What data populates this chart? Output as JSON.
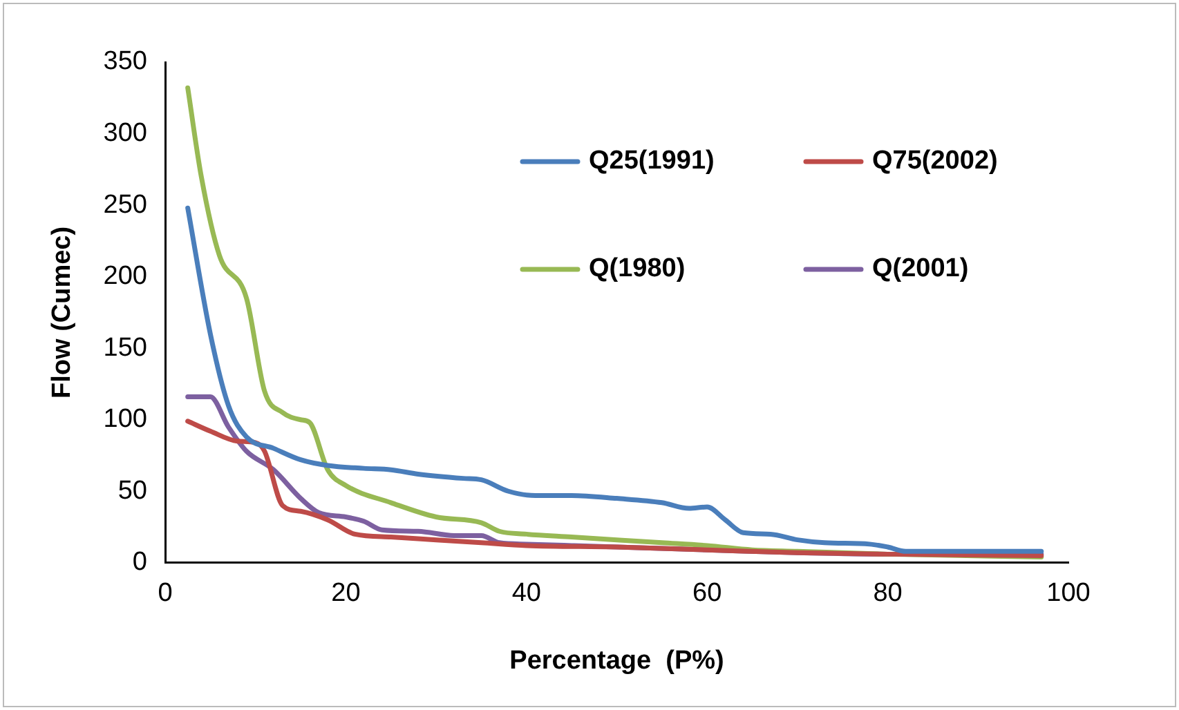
{
  "chart_data": {
    "type": "line",
    "xlabel": "Percentage  (P%)",
    "ylabel": "Flow (Cumec)",
    "xlim": [
      0,
      100
    ],
    "xticks": [
      0,
      20,
      40,
      60,
      80,
      100
    ],
    "ylim": [
      0,
      350
    ],
    "yticks": [
      0,
      50,
      100,
      150,
      200,
      250,
      300,
      350
    ],
    "grid": false,
    "legend": "top right",
    "marker": "none",
    "line_style": "solid",
    "series": [
      {
        "name": "Q25(1991)",
        "color": "#4a7ebb",
        "x": [
          2.5,
          5,
          7,
          9,
          12,
          15,
          18,
          22,
          25,
          28,
          33,
          35,
          38,
          41,
          45,
          50,
          55,
          58,
          60,
          62,
          64,
          67,
          70,
          73,
          78,
          80,
          82,
          90,
          97
        ],
        "values": [
          248,
          160,
          110,
          88,
          80,
          72,
          68,
          66,
          65,
          62,
          59,
          58,
          50,
          47,
          47,
          45,
          42,
          38,
          39,
          30,
          21,
          20,
          16,
          14,
          13,
          11,
          8,
          8,
          8
        ]
      },
      {
        "name": "Q75(2002)",
        "color": "#be4b48",
        "x": [
          2.5,
          5,
          8,
          10,
          11,
          13,
          15,
          18,
          21,
          25,
          30,
          35,
          40,
          50,
          60,
          70,
          80,
          97
        ],
        "values": [
          99,
          92,
          85,
          84,
          78,
          40,
          36,
          30,
          20,
          18,
          16,
          14,
          12,
          11,
          9,
          7,
          6,
          5
        ]
      },
      {
        "name": "Q(1980)",
        "color": "#98b954",
        "x": [
          2.5,
          4,
          6,
          9,
          11,
          13,
          15,
          16,
          18,
          20,
          25,
          30,
          35,
          37,
          40,
          45,
          50,
          55,
          60,
          65,
          70,
          80,
          97
        ],
        "values": [
          332,
          270,
          215,
          185,
          120,
          105,
          100,
          98,
          65,
          54,
          42,
          32,
          28,
          22,
          20,
          18,
          16,
          14,
          12,
          9,
          8,
          6,
          4
        ]
      },
      {
        "name": "Q(2001)",
        "color": "#7d60a0",
        "x": [
          2.5,
          5,
          7,
          9,
          12,
          15,
          17,
          20,
          22,
          24,
          28,
          32,
          35,
          37,
          40,
          45,
          50,
          60,
          70,
          80,
          97
        ],
        "values": [
          116,
          116,
          95,
          78,
          65,
          45,
          35,
          32,
          29,
          23,
          22,
          19,
          19,
          14,
          13,
          12,
          11,
          9,
          7,
          6,
          6
        ]
      }
    ]
  }
}
